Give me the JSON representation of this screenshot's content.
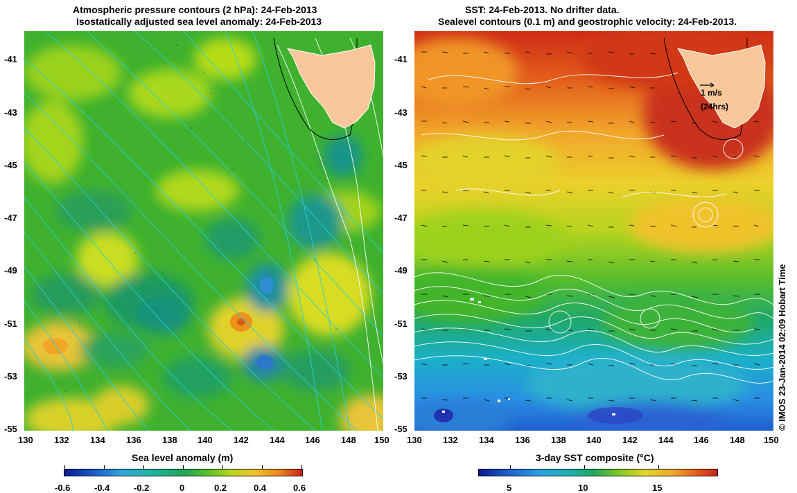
{
  "left_panel": {
    "title_line1": "Atmospheric pressure contours (2 hPa): 24-Feb-2013",
    "title_line2": "Isostatically adjusted sea level anomaly: 24-Feb-2013",
    "x_ticks": [
      "130",
      "132",
      "134",
      "136",
      "138",
      "140",
      "142",
      "144",
      "146",
      "148",
      "150"
    ],
    "y_ticks": [
      "-41",
      "-43",
      "-45",
      "-47",
      "-49",
      "-51",
      "-53",
      "-55"
    ],
    "colorbar_label": "Sea level anomaly (m)",
    "colorbar_ticks": [
      "-0.6",
      "-0.4",
      "-0.2",
      "0",
      "0.2",
      "0.4",
      "0.6"
    ]
  },
  "right_panel": {
    "title_line1": "SST: 24-Feb-2013. No drifter data.",
    "title_line2": "Sealevel contours (0.1 m) and geostrophic velocity: 24-Feb-2013.",
    "x_ticks": [
      "130",
      "132",
      "134",
      "136",
      "138",
      "140",
      "142",
      "144",
      "146",
      "148",
      "150"
    ],
    "y_ticks": [
      "-41",
      "-43",
      "-45",
      "-47",
      "-49",
      "-51",
      "-53",
      "-55"
    ],
    "colorbar_label": "3-day SST composite (°C)",
    "colorbar_ticks": [
      "5",
      "10",
      "15"
    ],
    "scale_label_1": "1 m/s",
    "scale_label_2": "(24hrs)"
  },
  "credit": "© IMOS 23-Jan-2014 02:09 Hobart Time",
  "colors": {
    "land": "#f8c79a",
    "sla_green": "#3fb12e",
    "contour_cyan": "#26d0d8"
  }
}
